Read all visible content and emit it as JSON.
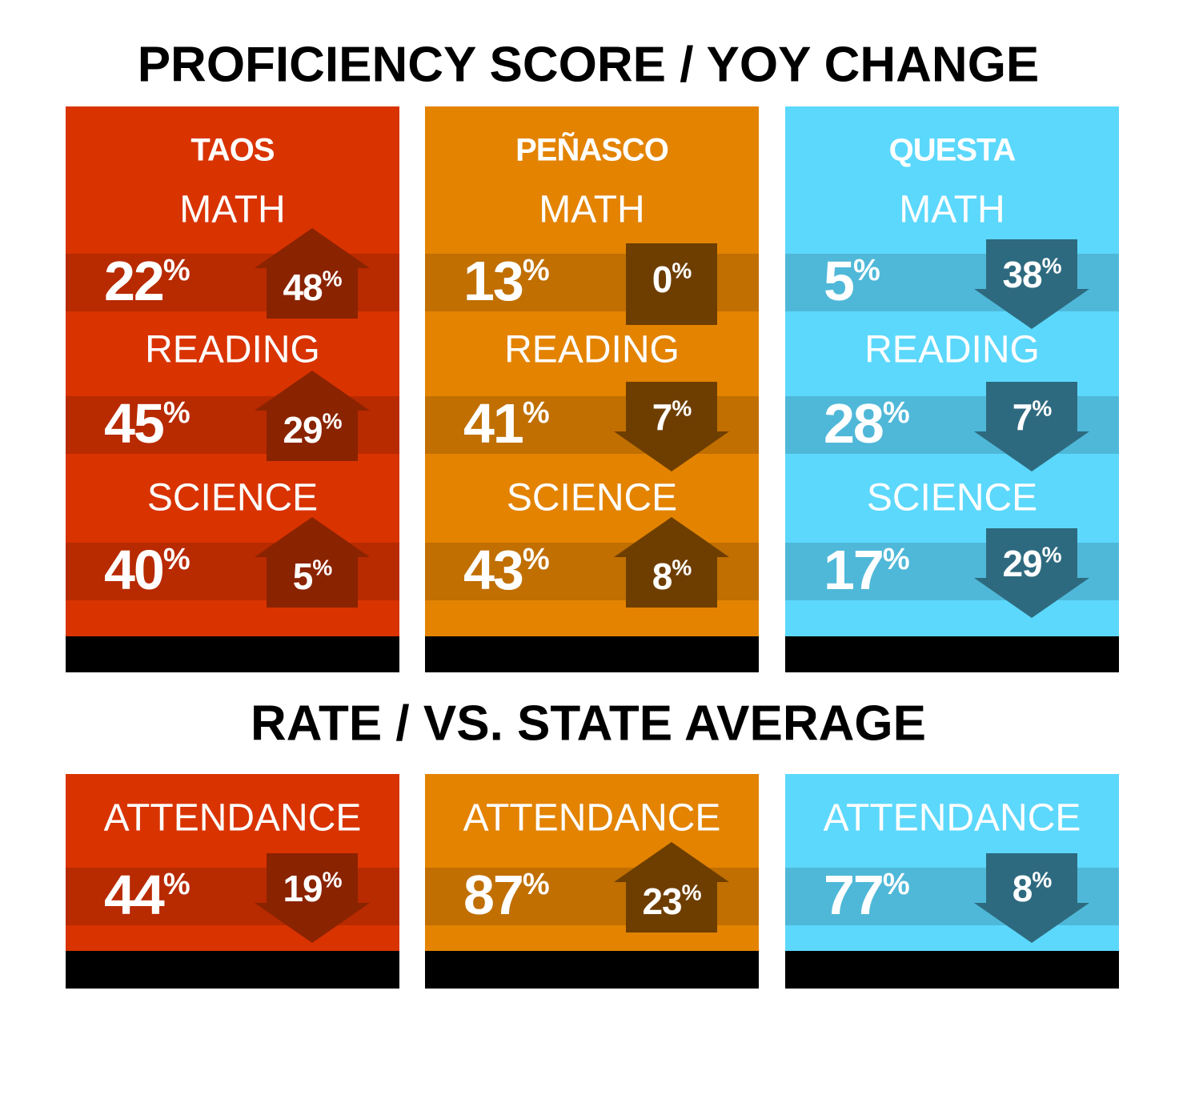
{
  "title": "PROFICIENCY SCORE / YOY CHANGE",
  "schools": [
    {
      "name": "TAOS",
      "subjects": [
        {
          "label": "MATH",
          "score": "22%",
          "change": "48%",
          "direction": "up"
        },
        {
          "label": "READING",
          "score": "45%",
          "change": "29%",
          "direction": "up"
        },
        {
          "label": "SCIENCE",
          "score": "40%",
          "change": "5%",
          "direction": "up"
        }
      ]
    },
    {
      "name": "PEÑASCO",
      "subjects": [
        {
          "label": "MATH",
          "score": "13%",
          "change": "0%",
          "direction": "flat"
        },
        {
          "label": "READING",
          "score": "41%",
          "change": "7%",
          "direction": "down"
        },
        {
          "label": "SCIENCE",
          "score": "43%",
          "change": "8%",
          "direction": "up"
        }
      ]
    },
    {
      "name": "QUESTA",
      "subjects": [
        {
          "label": "MATH",
          "score": "5%",
          "change": "38%",
          "direction": "down"
        },
        {
          "label": "READING",
          "score": "28%",
          "change": "7%",
          "direction": "down"
        },
        {
          "label": "SCIENCE",
          "score": "17%",
          "change": "29%",
          "direction": "down"
        }
      ]
    }
  ],
  "section2": {
    "title": "RATE / VS. STATE AVERAGE",
    "panels": [
      {
        "label": "ATTENDANCE",
        "score": "44%",
        "change": "19%",
        "direction": "down"
      },
      {
        "label": "ATTENDANCE",
        "score": "87%",
        "change": "23%",
        "direction": "up"
      },
      {
        "label": "ATTENDANCE",
        "score": "77%",
        "change": "8%",
        "direction": "down"
      }
    ]
  }
}
